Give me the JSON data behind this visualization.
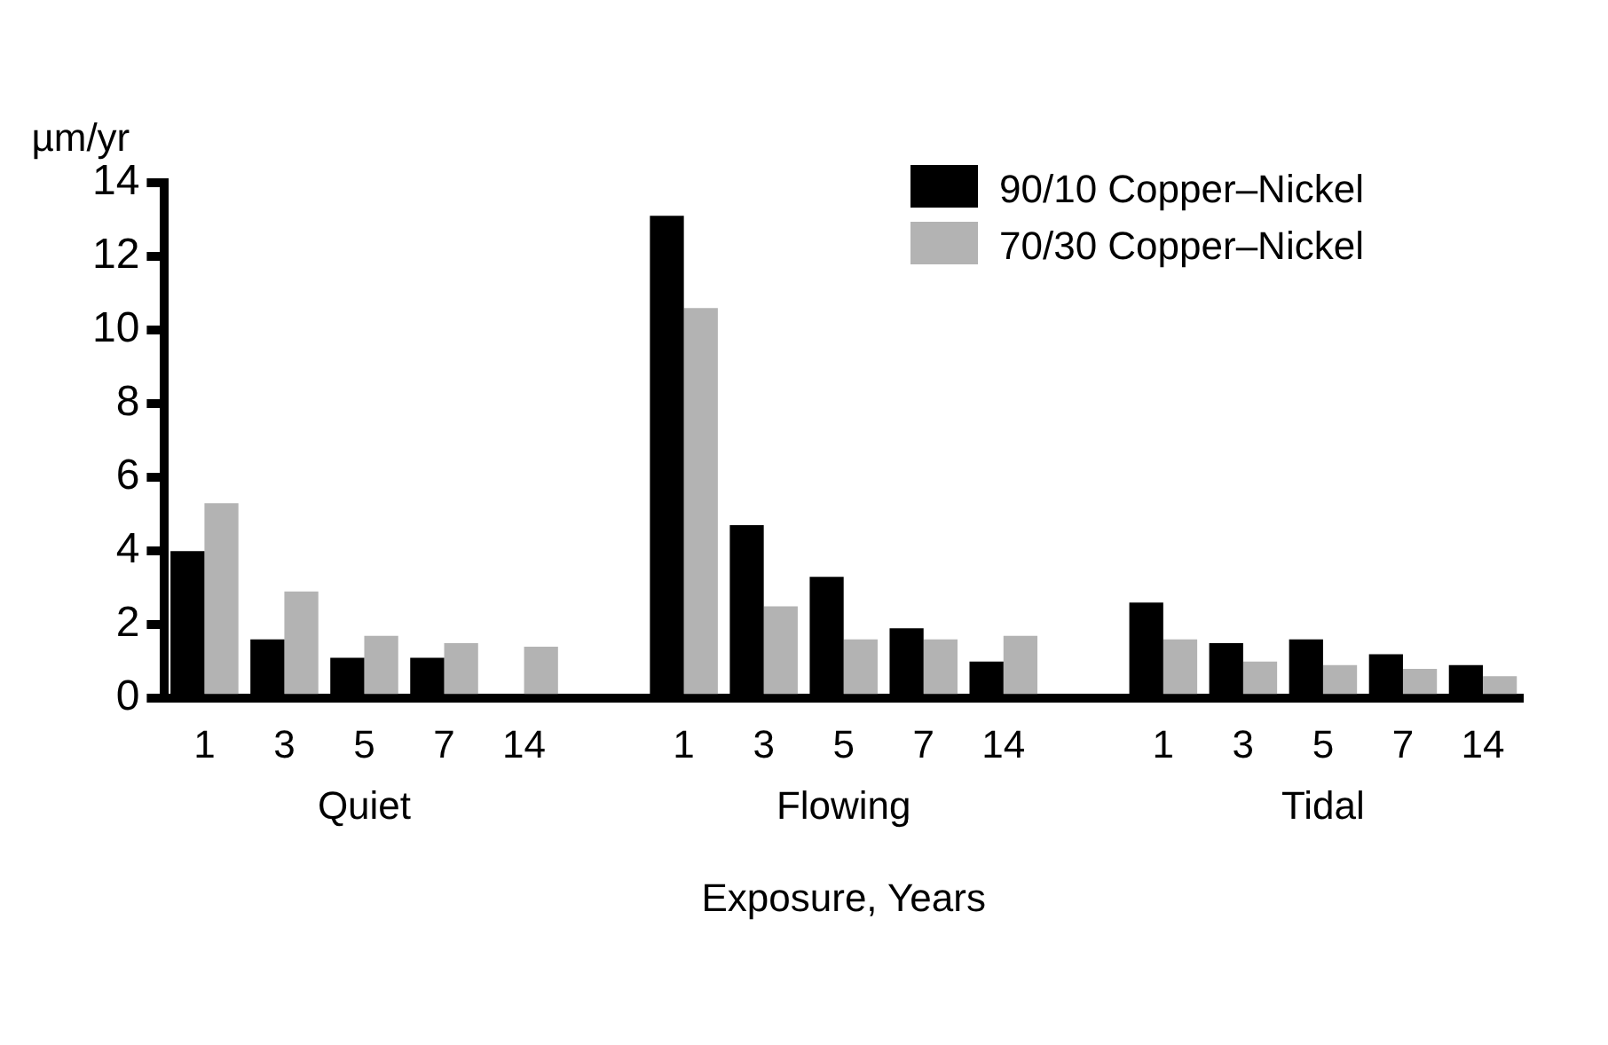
{
  "chart_data": {
    "type": "bar",
    "ylabel": "µm/yr",
    "xlabel": "Exposure, Years",
    "categories": [
      "1",
      "3",
      "5",
      "7",
      "14",
      null,
      "1",
      "3",
      "5",
      "7",
      "14",
      null,
      "1",
      "3",
      "5",
      "7",
      "14"
    ],
    "series": [
      {
        "name": "90/10 Copper–Nickel",
        "color": "#000000",
        "values": [
          4.0,
          1.6,
          1.1,
          1.1,
          null,
          null,
          13.1,
          4.7,
          3.3,
          1.9,
          1.0,
          null,
          2.6,
          1.5,
          1.6,
          1.2,
          0.9
        ]
      },
      {
        "name": "70/30 Copper–Nickel",
        "color": "#b3b3b3",
        "values": [
          5.3,
          2.9,
          1.7,
          1.5,
          1.4,
          null,
          10.6,
          2.5,
          1.6,
          1.6,
          1.7,
          null,
          1.6,
          1.0,
          0.9,
          0.8,
          0.6
        ]
      }
    ],
    "annotations": [
      "Quiet",
      "Flowing",
      "Tidal"
    ],
    "ylim": [
      0,
      14
    ],
    "yticks": [
      0,
      2,
      4,
      6,
      8,
      10,
      12,
      14
    ],
    "grid": false,
    "legend": "top right"
  }
}
